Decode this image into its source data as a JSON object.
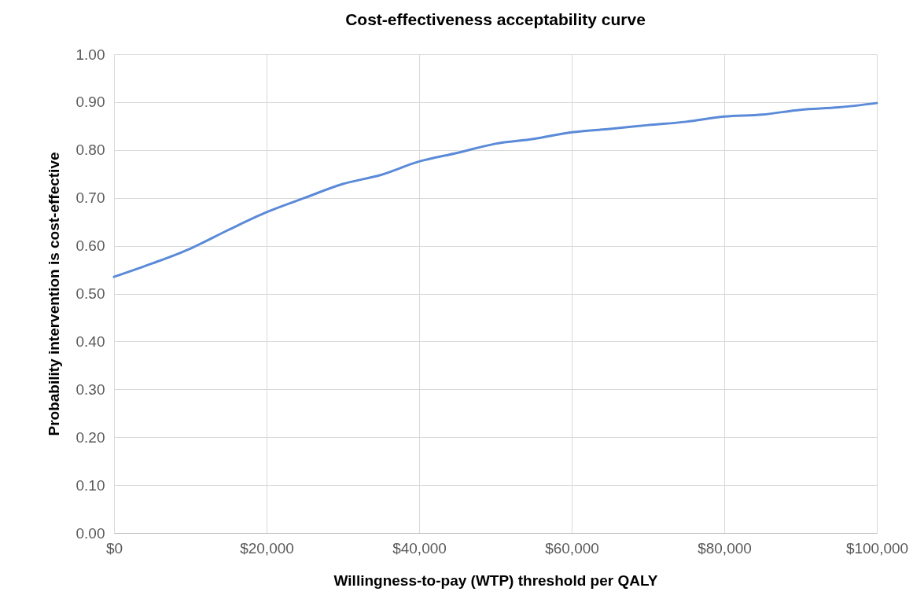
{
  "chart_data": {
    "type": "line",
    "title": "Cost-effectiveness acceptability curve",
    "xlabel": "Willingness-to-pay (WTP) threshold per QALY",
    "ylabel": "Probability intervention is cost-effective",
    "x": [
      0,
      5000,
      10000,
      15000,
      20000,
      25000,
      30000,
      35000,
      40000,
      45000,
      50000,
      55000,
      60000,
      65000,
      70000,
      75000,
      80000,
      85000,
      90000,
      95000,
      100000
    ],
    "series": [
      {
        "color": "#5a8ad8",
        "values": [
          0.535,
          0.563,
          0.594,
          0.633,
          0.67,
          0.7,
          0.729,
          0.748,
          0.776,
          0.794,
          0.813,
          0.823,
          0.837,
          0.844,
          0.852,
          0.859,
          0.87,
          0.874,
          0.884,
          0.889,
          0.898
        ]
      }
    ],
    "xlim": [
      0,
      100000
    ],
    "xticks": [
      {
        "value": 0,
        "label": "$0"
      },
      {
        "value": 20000,
        "label": "$20,000"
      },
      {
        "value": 40000,
        "label": "$40,000"
      },
      {
        "value": 60000,
        "label": "$60,000"
      },
      {
        "value": 80000,
        "label": "$80,000"
      },
      {
        "value": 100000,
        "label": "$100,000"
      }
    ],
    "ylim": [
      0,
      1
    ],
    "yticks": [
      {
        "value": 0,
        "label": "0.00"
      },
      {
        "value": 0.1,
        "label": "0.10"
      },
      {
        "value": 0.2,
        "label": "0.20"
      },
      {
        "value": 0.3,
        "label": "0.30"
      },
      {
        "value": 0.4,
        "label": "0.40"
      },
      {
        "value": 0.5,
        "label": "0.50"
      },
      {
        "value": 0.6,
        "label": "0.60"
      },
      {
        "value": 0.7,
        "label": "0.70"
      },
      {
        "value": 0.8,
        "label": "0.80"
      },
      {
        "value": 0.9,
        "label": "0.90"
      },
      {
        "value": 1,
        "label": "1.00"
      }
    ],
    "grid": true,
    "marker": "none",
    "line_style": "solid",
    "legend": false
  }
}
